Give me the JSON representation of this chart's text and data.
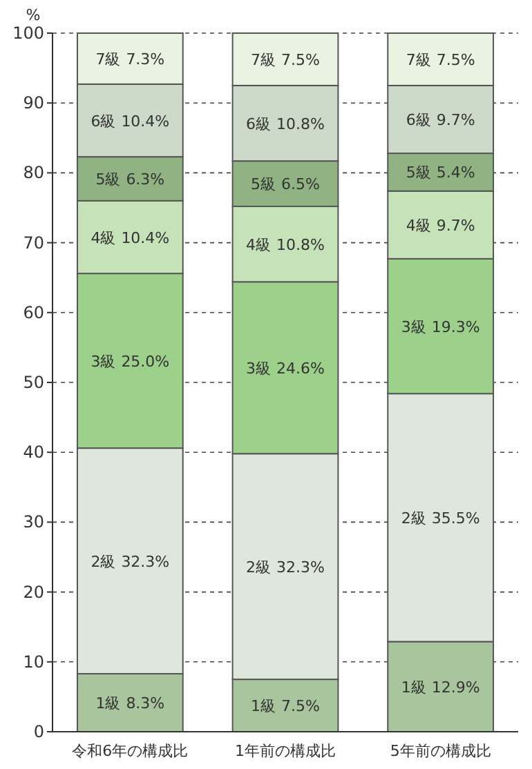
{
  "chart_data": {
    "type": "bar",
    "stacked": true,
    "ylabel": "%",
    "categories": [
      "令和6年の構成比",
      "1年前の構成比",
      "5年前の構成比"
    ],
    "ylim": [
      0,
      100
    ],
    "yticks": [
      0,
      10,
      20,
      30,
      40,
      50,
      60,
      70,
      80,
      90,
      100
    ],
    "grid": "y",
    "series": [
      {
        "name": "1級",
        "color": "#a9c59d",
        "values": [
          8.3,
          7.5,
          12.9
        ],
        "value_labels": [
          "8.3%",
          "7.5%",
          "12.9%"
        ]
      },
      {
        "name": "2級",
        "color": "#dfe7dc",
        "values": [
          32.3,
          32.3,
          35.5
        ],
        "value_labels": [
          "32.3%",
          "32.3%",
          "35.5%"
        ]
      },
      {
        "name": "3級",
        "color": "#9dd08b",
        "values": [
          25.0,
          24.6,
          19.3
        ],
        "value_labels": [
          "25.0%",
          "24.6%",
          "19.3%"
        ]
      },
      {
        "name": "4級",
        "color": "#c6e2b8",
        "values": [
          10.4,
          10.8,
          9.7
        ],
        "value_labels": [
          "10.4%",
          "10.8%",
          "9.7%"
        ]
      },
      {
        "name": "5級",
        "color": "#91b282",
        "values": [
          6.3,
          6.5,
          5.4
        ],
        "value_labels": [
          "6.3%",
          "6.5%",
          "5.4%"
        ]
      },
      {
        "name": "6級",
        "color": "#cdd9c9",
        "values": [
          10.4,
          10.8,
          9.7
        ],
        "value_labels": [
          "10.4%",
          "10.8%",
          "9.7%"
        ]
      },
      {
        "name": "7級",
        "color": "#eaf3e1",
        "values": [
          7.3,
          7.5,
          7.5
        ],
        "value_labels": [
          "7.3%",
          "7.5%",
          "7.5%"
        ]
      }
    ]
  }
}
